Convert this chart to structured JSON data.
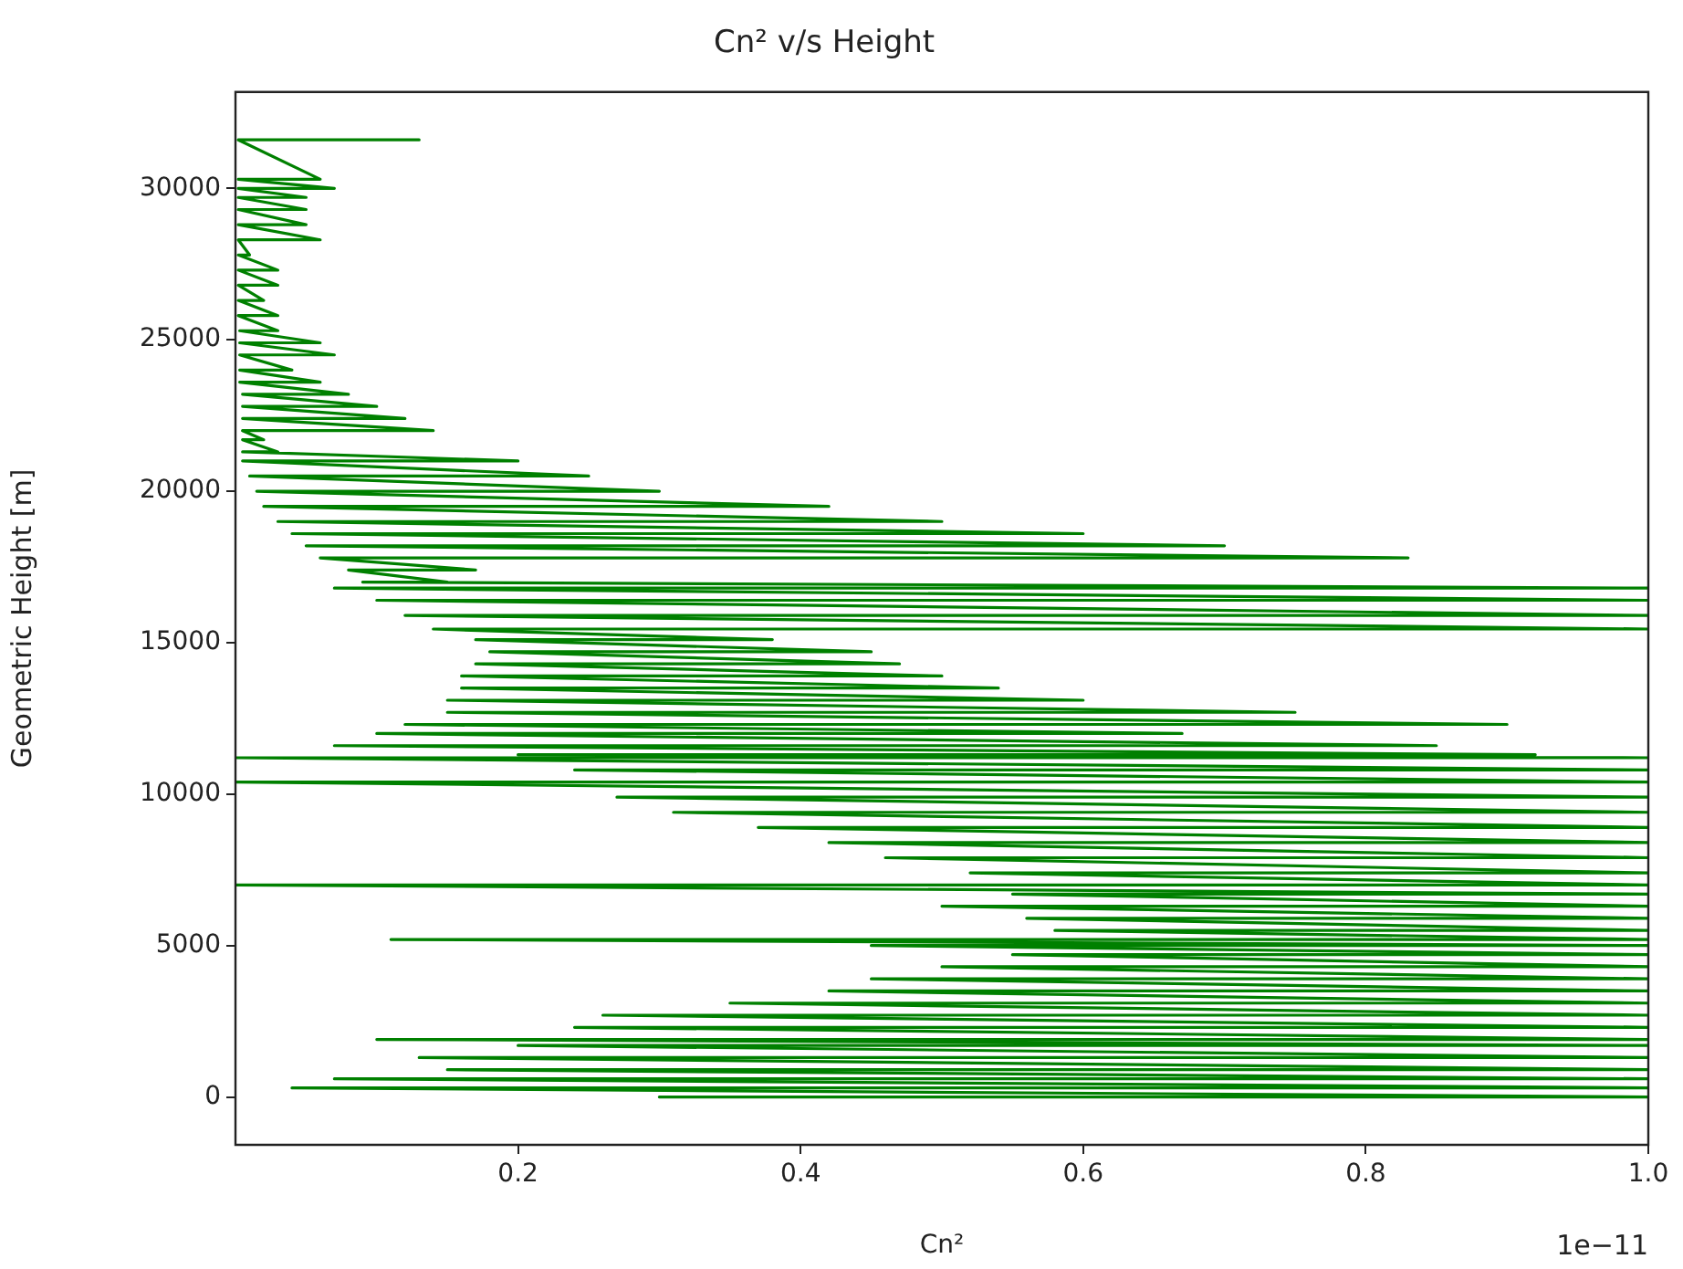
{
  "chart_data": {
    "type": "line",
    "title": "Cn² v/s Height",
    "xlabel": "Cn²",
    "ylabel": "Geometric Height [m]",
    "annotations": [
      "1e−11"
    ],
    "xlim": [
      0,
      1
    ],
    "xticks": [
      0.2,
      0.4,
      0.6,
      0.8,
      {
        "value": 1,
        "label": "1.0"
      }
    ],
    "ylim": [
      -1580,
      33180
    ],
    "yticks": [
      0,
      5000,
      10000,
      15000,
      20000,
      25000,
      30000
    ],
    "line_style": "solid",
    "series": [
      {
        "color": "#008000",
        "x": [
          0.3,
          1.0,
          0.04,
          1.0,
          0.07,
          1.0,
          0.15,
          1.0,
          0.13,
          1.0,
          0.2,
          1.0,
          0.1,
          1.0,
          0.24,
          1.0,
          0.26,
          1.0,
          0.35,
          1.0,
          0.42,
          1.0,
          0.45,
          1.0,
          0.5,
          1.0,
          0.55,
          1.0,
          0.45,
          1.0,
          0.11,
          1.0,
          0.58,
          1.0,
          0.56,
          1.0,
          0.5,
          1.0,
          0.55,
          1.0,
          0.0,
          1.0,
          0.52,
          1.0,
          0.46,
          1.0,
          0.42,
          1.0,
          0.37,
          1.0,
          0.31,
          1.0,
          0.27,
          1.0,
          0.0,
          1.0,
          0.24,
          1.0,
          0.0,
          1.0,
          0.2,
          0.92,
          0.07,
          0.85,
          0.1,
          0.67,
          0.12,
          0.9,
          0.15,
          0.75,
          0.15,
          0.6,
          0.16,
          0.54,
          0.16,
          0.5,
          0.17,
          0.47,
          0.18,
          0.45,
          0.17,
          0.38,
          0.14,
          1.0,
          0.12,
          1.0,
          0.1,
          1.0,
          0.07,
          1.0,
          0.09,
          0.15,
          0.08,
          0.17,
          0.06,
          0.83,
          0.05,
          0.7,
          0.04,
          0.6,
          0.03,
          0.5,
          0.02,
          0.42,
          0.015,
          0.3,
          0.01,
          0.25,
          0.005,
          0.2,
          0.005,
          0.03,
          0.005,
          0.02,
          0.005,
          0.14,
          0.005,
          0.12,
          0.005,
          0.1,
          0.005,
          0.08,
          0.003,
          0.06,
          0.003,
          0.04,
          0.003,
          0.07,
          0.003,
          0.06,
          0.003,
          0.03,
          0.002,
          0.03,
          0.002,
          0.02,
          0.002,
          0.03,
          0.002,
          0.03,
          0.002,
          0.01,
          0.002,
          0.06,
          0.002,
          0.05,
          0.002,
          0.05,
          0.002,
          0.05,
          0.002,
          0.07,
          0.002,
          0.06,
          0.002,
          0.13
        ],
        "values": [
          0,
          0,
          300,
          300,
          600,
          600,
          900,
          900,
          1300,
          1300,
          1700,
          1700,
          1900,
          1900,
          2300,
          2300,
          2700,
          2700,
          3100,
          3100,
          3500,
          3500,
          3900,
          3900,
          4300,
          4300,
          4700,
          4700,
          5000,
          5000,
          5200,
          5200,
          5500,
          5500,
          5900,
          5900,
          6300,
          6300,
          6700,
          6700,
          7000,
          7000,
          7400,
          7400,
          7900,
          7900,
          8400,
          8400,
          8900,
          8900,
          9400,
          9400,
          9900,
          9900,
          10400,
          10400,
          10800,
          10800,
          11200,
          11200,
          11300,
          11300,
          11600,
          11600,
          12000,
          12000,
          12300,
          12300,
          12700,
          12700,
          13100,
          13100,
          13500,
          13500,
          13900,
          13900,
          14300,
          14300,
          14700,
          14700,
          15100,
          15100,
          15450,
          15450,
          15900,
          15900,
          16400,
          16400,
          16800,
          16800,
          17000,
          17000,
          17400,
          17400,
          17800,
          17800,
          18200,
          18200,
          18600,
          18600,
          19000,
          19000,
          19500,
          19500,
          20000,
          20000,
          20500,
          20500,
          21000,
          21000,
          21300,
          21300,
          21700,
          21700,
          22000,
          22000,
          22400,
          22400,
          22800,
          22800,
          23200,
          23200,
          23600,
          23600,
          24000,
          24000,
          24500,
          24500,
          24900,
          24900,
          25300,
          25300,
          25800,
          25800,
          26300,
          26300,
          26800,
          26800,
          27300,
          27300,
          27800,
          27800,
          28300,
          28300,
          28800,
          28800,
          29300,
          29300,
          29700,
          29700,
          30000,
          30000,
          30300,
          30300,
          31600,
          31600
        ]
      }
    ]
  }
}
